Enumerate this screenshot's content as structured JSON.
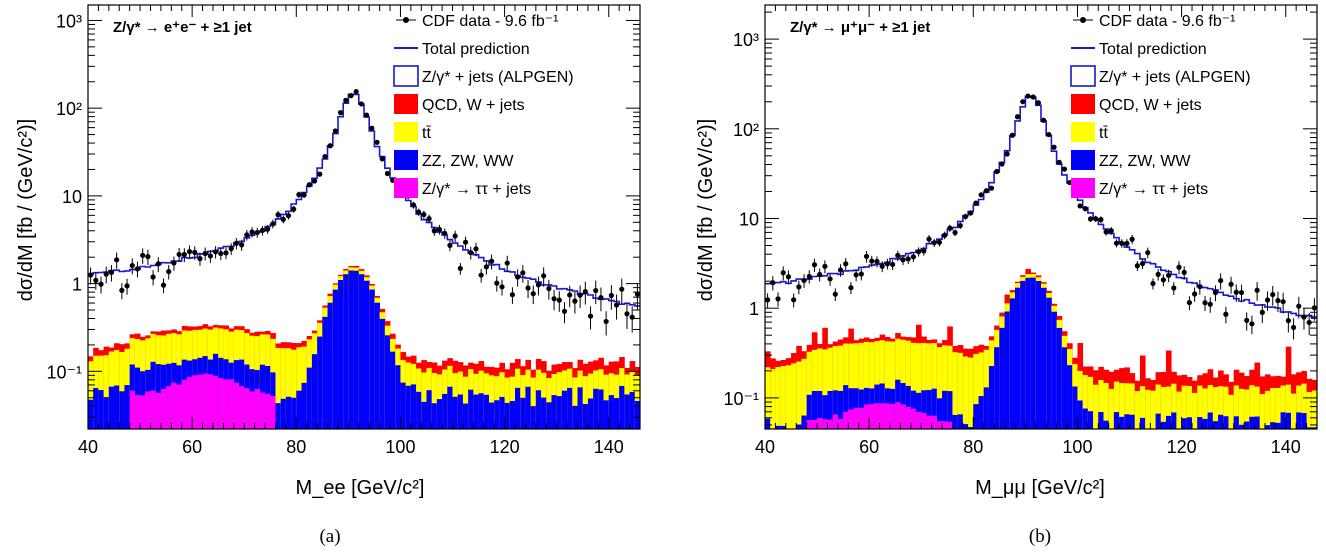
{
  "chart_data": [
    {
      "panel_label": "(a)",
      "type": "histogram",
      "process_label": "Z/γ* → e⁺e⁻ + ≥1 jet",
      "xlabel": "M_ee [GeV/c²]",
      "ylabel": "dσ/dM  [fb / (GeV/c²)]",
      "xlim": [
        40,
        146
      ],
      "ylim": [
        0.022,
        1500
      ],
      "yscale": "log",
      "xticks": [
        "40",
        "60",
        "80",
        "100",
        "120",
        "140"
      ],
      "yticks": [
        {
          "value": 0.1,
          "label": "10⁻¹"
        },
        {
          "value": 1,
          "label": "1"
        },
        {
          "value": 10,
          "label": "10"
        },
        {
          "value": 100,
          "label": "10²"
        },
        {
          "value": 1000,
          "label": "10³"
        }
      ],
      "peak_position": 91,
      "peak_value": 155,
      "wide_background": 0.75,
      "slope": 0.45,
      "stack_peak": 1.45,
      "stack_width": 3.4,
      "stack_bg_level": 0.08,
      "tau_enabled": true,
      "series": [
        {
          "name": "CDF data -  9.6 fb⁻¹",
          "kind": "points"
        },
        {
          "name": "Total prediction",
          "kind": "line",
          "color": "#1818cc"
        },
        {
          "name": "Z/γ* + jets (ALPGEN)",
          "kind": "outline",
          "color": "#1818cc"
        },
        {
          "name": "QCD, W + jets",
          "kind": "fill",
          "color": "#ff0000"
        },
        {
          "name": "tt̄",
          "kind": "fill",
          "color": "#ffff00"
        },
        {
          "name": "ZZ, ZW, WW",
          "kind": "fill",
          "color": "#0000ff"
        },
        {
          "name": "Z/γ* →  ττ + jets",
          "kind": "fill",
          "color": "#ff00ff"
        }
      ]
    },
    {
      "panel_label": "(b)",
      "type": "histogram",
      "process_label": "Z/γ* → μ⁺μ⁻ + ≥1 jet",
      "xlabel": "M_μμ [GeV/c²]",
      "ylabel": "dσ/dM  [fb / (GeV/c²)]",
      "xlim": [
        40,
        146
      ],
      "ylim": [
        0.045,
        2400
      ],
      "yscale": "log",
      "xticks": [
        "40",
        "60",
        "80",
        "100",
        "120",
        "140"
      ],
      "yticks": [
        {
          "value": 0.1,
          "label": "10⁻¹"
        },
        {
          "value": 1,
          "label": "1"
        },
        {
          "value": 10,
          "label": "10"
        },
        {
          "value": 100,
          "label": "10²"
        },
        {
          "value": 1000,
          "label": "10³"
        }
      ],
      "peak_position": 91,
      "peak_value": 240,
      "wide_background": 1.05,
      "slope": 0.5,
      "stack_peak": 2.3,
      "stack_width": 3.4,
      "stack_bg_level": 0.15,
      "tau_enabled": true,
      "series": [
        {
          "name": "CDF data -  9.6 fb⁻¹",
          "kind": "points"
        },
        {
          "name": "Total prediction",
          "kind": "line",
          "color": "#1818cc"
        },
        {
          "name": "Z/γ* + jets (ALPGEN)",
          "kind": "outline",
          "color": "#1818cc"
        },
        {
          "name": "QCD, W + jets",
          "kind": "fill",
          "color": "#ff0000"
        },
        {
          "name": "tt̄",
          "kind": "fill",
          "color": "#ffff00"
        },
        {
          "name": "ZZ, ZW, WW",
          "kind": "fill",
          "color": "#0000ff"
        },
        {
          "name": "Z/γ* →  ττ + jets",
          "kind": "fill",
          "color": "#ff00ff"
        }
      ]
    }
  ]
}
